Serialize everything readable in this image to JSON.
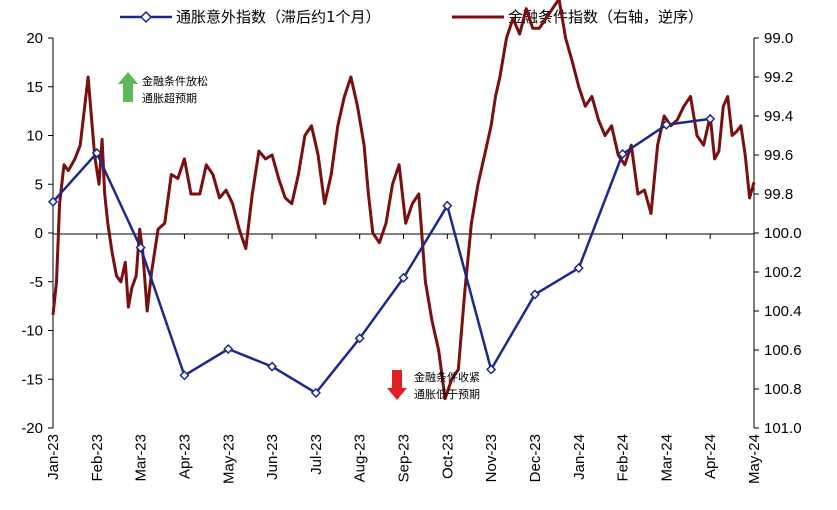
{
  "colors": {
    "inflation": "#1a2a8c",
    "fci": "#7a0f0f",
    "up_arrow": "#5cb85c",
    "down_arrow": "#e02020"
  },
  "legend": {
    "inflation": "通胀意外指数（滞后约1个月）",
    "fci": "金融条件指数（右轴，逆序）"
  },
  "annotations": {
    "easing_line1": "金融条件放松",
    "easing_line2": "通胀超预期",
    "tightening_line1": "金融条件收紧",
    "tightening_line2": "通胀低于预期"
  },
  "chart_data": {
    "type": "line",
    "categories": [
      "Jan-23",
      "Feb-23",
      "Mar-23",
      "Apr-23",
      "May-23",
      "Jun-23",
      "Jul-23",
      "Aug-23",
      "Sep-23",
      "Oct-23",
      "Nov-23",
      "Dec-23",
      "Jan-24",
      "Feb-24",
      "Mar-24",
      "Apr-24",
      "May-24"
    ],
    "left_axis": {
      "ticks": [
        "20",
        "15",
        "10",
        "5",
        "0",
        "-5",
        "-10",
        "-15",
        "-20"
      ],
      "range": [
        -20,
        20
      ]
    },
    "right_axis": {
      "ticks": [
        "99.0",
        "99.2",
        "99.4",
        "99.6",
        "99.8",
        "100.0",
        "100.2",
        "100.4",
        "100.6",
        "100.8",
        "101.0"
      ],
      "range": [
        99.0,
        101.0
      ],
      "inverted": true
    },
    "series": [
      {
        "name": "通胀意外指数（滞后约1个月）",
        "axis": "left",
        "marker": "diamond",
        "x": [
          0,
          1,
          2,
          3,
          4,
          5,
          6,
          7,
          8,
          9,
          10,
          11,
          12,
          13,
          14,
          15
        ],
        "values": [
          3.2,
          8.2,
          -1.5,
          -14.6,
          -11.9,
          -13.7,
          -16.4,
          -10.8,
          -4.6,
          2.8,
          -14.0,
          -6.3,
          -3.6,
          8.1,
          11.1,
          11.7
        ]
      },
      {
        "name": "金融条件指数（右轴，逆序）",
        "axis": "right",
        "x": [
          0,
          0.08,
          0.15,
          0.25,
          0.35,
          0.5,
          0.62,
          0.8,
          0.95,
          1.05,
          1.12,
          1.18,
          1.25,
          1.35,
          1.45,
          1.55,
          1.65,
          1.72,
          1.8,
          1.9,
          1.98,
          2.05,
          2.15,
          2.25,
          2.4,
          2.55,
          2.7,
          2.85,
          3.0,
          3.15,
          3.35,
          3.5,
          3.65,
          3.8,
          3.95,
          4.1,
          4.25,
          4.4,
          4.55,
          4.7,
          4.85,
          5.0,
          5.15,
          5.3,
          5.45,
          5.6,
          5.75,
          5.9,
          6.05,
          6.2,
          6.35,
          6.5,
          6.65,
          6.8,
          6.95,
          7.1,
          7.2,
          7.3,
          7.45,
          7.6,
          7.75,
          7.9,
          8.05,
          8.2,
          8.35,
          8.5,
          8.65,
          8.8,
          8.95,
          9.1,
          9.25,
          9.4,
          9.55,
          9.7,
          9.85,
          10.0,
          10.1,
          10.2,
          10.35,
          10.5,
          10.65,
          10.8,
          10.95,
          11.1,
          11.25,
          11.4,
          11.55,
          11.7,
          11.85,
          12.0,
          12.15,
          12.3,
          12.45,
          12.6,
          12.75,
          12.9,
          13.05,
          13.2,
          13.35,
          13.5,
          13.65,
          13.8,
          13.95,
          14.1,
          14.25,
          14.4,
          14.55,
          14.7,
          14.85,
          15.0,
          15.1,
          15.2,
          15.3,
          15.4,
          15.5,
          15.6,
          15.7,
          15.8,
          15.9,
          16.0
        ],
        "values": [
          100.42,
          100.25,
          99.85,
          99.65,
          99.68,
          99.62,
          99.55,
          99.2,
          99.6,
          99.75,
          99.52,
          99.8,
          99.95,
          100.1,
          100.22,
          100.25,
          100.15,
          100.38,
          100.28,
          100.22,
          99.98,
          100.1,
          100.4,
          100.2,
          99.98,
          99.95,
          99.7,
          99.72,
          99.62,
          99.8,
          99.8,
          99.65,
          99.7,
          99.82,
          99.78,
          99.85,
          99.98,
          100.08,
          99.8,
          99.58,
          99.62,
          99.6,
          99.72,
          99.82,
          99.85,
          99.7,
          99.5,
          99.45,
          99.6,
          99.85,
          99.7,
          99.45,
          99.3,
          99.2,
          99.35,
          99.55,
          99.8,
          100.0,
          100.05,
          99.95,
          99.75,
          99.65,
          99.95,
          99.85,
          99.8,
          100.25,
          100.45,
          100.6,
          100.85,
          100.75,
          100.7,
          100.3,
          99.95,
          99.75,
          99.6,
          99.45,
          99.3,
          99.2,
          99.0,
          98.9,
          98.98,
          98.85,
          98.95,
          98.95,
          98.9,
          98.85,
          98.8,
          99.0,
          99.12,
          99.25,
          99.35,
          99.3,
          99.42,
          99.5,
          99.45,
          99.6,
          99.65,
          99.55,
          99.8,
          99.78,
          99.9,
          99.55,
          99.4,
          99.45,
          99.42,
          99.35,
          99.3,
          99.5,
          99.55,
          99.4,
          99.62,
          99.58,
          99.35,
          99.3,
          99.5,
          99.48,
          99.45,
          99.6,
          99.82,
          99.74
        ]
      }
    ],
    "grid": false,
    "legend_position": "top"
  }
}
